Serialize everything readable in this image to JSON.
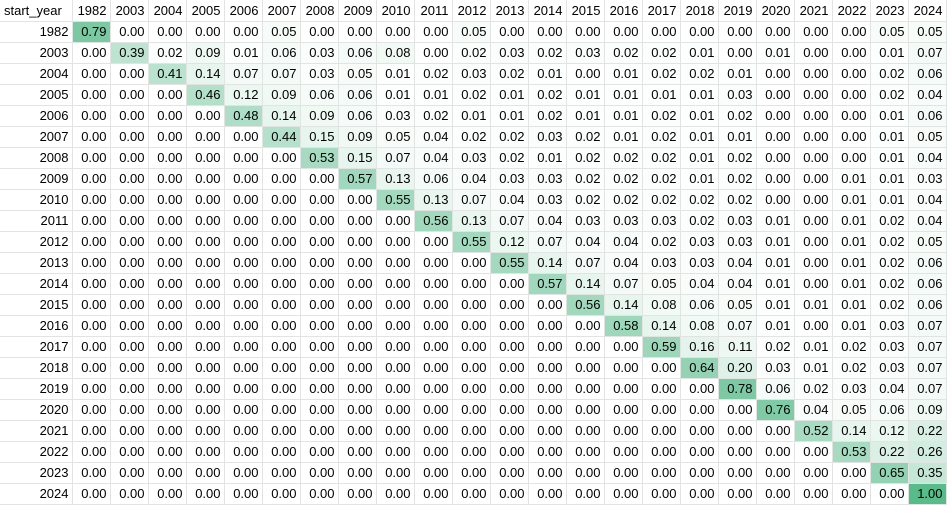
{
  "corner_label": "start_year",
  "columns": [
    "1982",
    "2003",
    "2004",
    "2005",
    "2006",
    "2007",
    "2008",
    "2009",
    "2010",
    "2011",
    "2012",
    "2013",
    "2014",
    "2015",
    "2016",
    "2017",
    "2018",
    "2019",
    "2020",
    "2021",
    "2022",
    "2023",
    "2024"
  ],
  "rows": [
    {
      "label": "1982",
      "values": [
        "0.79",
        "0.00",
        "0.00",
        "0.00",
        "0.00",
        "0.05",
        "0.00",
        "0.00",
        "0.00",
        "0.00",
        "0.05",
        "0.00",
        "0.00",
        "0.00",
        "0.00",
        "0.00",
        "0.00",
        "0.00",
        "0.00",
        "0.00",
        "0.00",
        "0.05",
        "0.05"
      ]
    },
    {
      "label": "2003",
      "values": [
        "0.00",
        "0.39",
        "0.02",
        "0.09",
        "0.01",
        "0.06",
        "0.03",
        "0.06",
        "0.08",
        "0.00",
        "0.02",
        "0.03",
        "0.02",
        "0.03",
        "0.02",
        "0.02",
        "0.01",
        "0.00",
        "0.01",
        "0.00",
        "0.00",
        "0.01",
        "0.07"
      ]
    },
    {
      "label": "2004",
      "values": [
        "0.00",
        "0.00",
        "0.41",
        "0.14",
        "0.07",
        "0.07",
        "0.03",
        "0.05",
        "0.01",
        "0.02",
        "0.03",
        "0.02",
        "0.01",
        "0.00",
        "0.01",
        "0.02",
        "0.02",
        "0.01",
        "0.00",
        "0.00",
        "0.00",
        "0.02",
        "0.06"
      ]
    },
    {
      "label": "2005",
      "values": [
        "0.00",
        "0.00",
        "0.00",
        "0.46",
        "0.12",
        "0.09",
        "0.06",
        "0.06",
        "0.01",
        "0.01",
        "0.02",
        "0.01",
        "0.02",
        "0.01",
        "0.01",
        "0.01",
        "0.01",
        "0.03",
        "0.00",
        "0.00",
        "0.00",
        "0.02",
        "0.04"
      ]
    },
    {
      "label": "2006",
      "values": [
        "0.00",
        "0.00",
        "0.00",
        "0.00",
        "0.48",
        "0.14",
        "0.09",
        "0.06",
        "0.03",
        "0.02",
        "0.01",
        "0.01",
        "0.02",
        "0.01",
        "0.01",
        "0.02",
        "0.01",
        "0.02",
        "0.00",
        "0.00",
        "0.00",
        "0.01",
        "0.06"
      ]
    },
    {
      "label": "2007",
      "values": [
        "0.00",
        "0.00",
        "0.00",
        "0.00",
        "0.00",
        "0.44",
        "0.15",
        "0.09",
        "0.05",
        "0.04",
        "0.02",
        "0.02",
        "0.03",
        "0.02",
        "0.01",
        "0.02",
        "0.01",
        "0.01",
        "0.00",
        "0.00",
        "0.00",
        "0.01",
        "0.05"
      ]
    },
    {
      "label": "2008",
      "values": [
        "0.00",
        "0.00",
        "0.00",
        "0.00",
        "0.00",
        "0.00",
        "0.53",
        "0.15",
        "0.07",
        "0.04",
        "0.03",
        "0.02",
        "0.01",
        "0.02",
        "0.02",
        "0.02",
        "0.01",
        "0.02",
        "0.00",
        "0.00",
        "0.00",
        "0.01",
        "0.04"
      ]
    },
    {
      "label": "2009",
      "values": [
        "0.00",
        "0.00",
        "0.00",
        "0.00",
        "0.00",
        "0.00",
        "0.00",
        "0.57",
        "0.13",
        "0.06",
        "0.04",
        "0.03",
        "0.03",
        "0.02",
        "0.02",
        "0.02",
        "0.01",
        "0.02",
        "0.00",
        "0.00",
        "0.01",
        "0.01",
        "0.03"
      ]
    },
    {
      "label": "2010",
      "values": [
        "0.00",
        "0.00",
        "0.00",
        "0.00",
        "0.00",
        "0.00",
        "0.00",
        "0.00",
        "0.55",
        "0.13",
        "0.07",
        "0.04",
        "0.03",
        "0.02",
        "0.02",
        "0.02",
        "0.02",
        "0.02",
        "0.00",
        "0.00",
        "0.01",
        "0.01",
        "0.04"
      ]
    },
    {
      "label": "2011",
      "values": [
        "0.00",
        "0.00",
        "0.00",
        "0.00",
        "0.00",
        "0.00",
        "0.00",
        "0.00",
        "0.00",
        "0.56",
        "0.13",
        "0.07",
        "0.04",
        "0.03",
        "0.03",
        "0.03",
        "0.02",
        "0.03",
        "0.01",
        "0.00",
        "0.01",
        "0.02",
        "0.04"
      ]
    },
    {
      "label": "2012",
      "values": [
        "0.00",
        "0.00",
        "0.00",
        "0.00",
        "0.00",
        "0.00",
        "0.00",
        "0.00",
        "0.00",
        "0.00",
        "0.55",
        "0.12",
        "0.07",
        "0.04",
        "0.04",
        "0.02",
        "0.03",
        "0.03",
        "0.01",
        "0.00",
        "0.01",
        "0.02",
        "0.05"
      ]
    },
    {
      "label": "2013",
      "values": [
        "0.00",
        "0.00",
        "0.00",
        "0.00",
        "0.00",
        "0.00",
        "0.00",
        "0.00",
        "0.00",
        "0.00",
        "0.00",
        "0.55",
        "0.14",
        "0.07",
        "0.04",
        "0.03",
        "0.03",
        "0.04",
        "0.01",
        "0.00",
        "0.01",
        "0.02",
        "0.06"
      ]
    },
    {
      "label": "2014",
      "values": [
        "0.00",
        "0.00",
        "0.00",
        "0.00",
        "0.00",
        "0.00",
        "0.00",
        "0.00",
        "0.00",
        "0.00",
        "0.00",
        "0.00",
        "0.57",
        "0.14",
        "0.07",
        "0.05",
        "0.04",
        "0.04",
        "0.01",
        "0.00",
        "0.01",
        "0.02",
        "0.06"
      ]
    },
    {
      "label": "2015",
      "values": [
        "0.00",
        "0.00",
        "0.00",
        "0.00",
        "0.00",
        "0.00",
        "0.00",
        "0.00",
        "0.00",
        "0.00",
        "0.00",
        "0.00",
        "0.00",
        "0.56",
        "0.14",
        "0.08",
        "0.06",
        "0.05",
        "0.01",
        "0.01",
        "0.01",
        "0.02",
        "0.06"
      ]
    },
    {
      "label": "2016",
      "values": [
        "0.00",
        "0.00",
        "0.00",
        "0.00",
        "0.00",
        "0.00",
        "0.00",
        "0.00",
        "0.00",
        "0.00",
        "0.00",
        "0.00",
        "0.00",
        "0.00",
        "0.58",
        "0.14",
        "0.08",
        "0.07",
        "0.01",
        "0.00",
        "0.01",
        "0.03",
        "0.07"
      ]
    },
    {
      "label": "2017",
      "values": [
        "0.00",
        "0.00",
        "0.00",
        "0.00",
        "0.00",
        "0.00",
        "0.00",
        "0.00",
        "0.00",
        "0.00",
        "0.00",
        "0.00",
        "0.00",
        "0.00",
        "0.00",
        "0.59",
        "0.16",
        "0.11",
        "0.02",
        "0.01",
        "0.02",
        "0.03",
        "0.07"
      ]
    },
    {
      "label": "2018",
      "values": [
        "0.00",
        "0.00",
        "0.00",
        "0.00",
        "0.00",
        "0.00",
        "0.00",
        "0.00",
        "0.00",
        "0.00",
        "0.00",
        "0.00",
        "0.00",
        "0.00",
        "0.00",
        "0.00",
        "0.64",
        "0.20",
        "0.03",
        "0.01",
        "0.02",
        "0.03",
        "0.07"
      ]
    },
    {
      "label": "2019",
      "values": [
        "0.00",
        "0.00",
        "0.00",
        "0.00",
        "0.00",
        "0.00",
        "0.00",
        "0.00",
        "0.00",
        "0.00",
        "0.00",
        "0.00",
        "0.00",
        "0.00",
        "0.00",
        "0.00",
        "0.00",
        "0.78",
        "0.06",
        "0.02",
        "0.03",
        "0.04",
        "0.07"
      ]
    },
    {
      "label": "2020",
      "values": [
        "0.00",
        "0.00",
        "0.00",
        "0.00",
        "0.00",
        "0.00",
        "0.00",
        "0.00",
        "0.00",
        "0.00",
        "0.00",
        "0.00",
        "0.00",
        "0.00",
        "0.00",
        "0.00",
        "0.00",
        "0.00",
        "0.76",
        "0.04",
        "0.05",
        "0.06",
        "0.09"
      ]
    },
    {
      "label": "2021",
      "values": [
        "0.00",
        "0.00",
        "0.00",
        "0.00",
        "0.00",
        "0.00",
        "0.00",
        "0.00",
        "0.00",
        "0.00",
        "0.00",
        "0.00",
        "0.00",
        "0.00",
        "0.00",
        "0.00",
        "0.00",
        "0.00",
        "0.00",
        "0.52",
        "0.14",
        "0.12",
        "0.22"
      ]
    },
    {
      "label": "2022",
      "values": [
        "0.00",
        "0.00",
        "0.00",
        "0.00",
        "0.00",
        "0.00",
        "0.00",
        "0.00",
        "0.00",
        "0.00",
        "0.00",
        "0.00",
        "0.00",
        "0.00",
        "0.00",
        "0.00",
        "0.00",
        "0.00",
        "0.00",
        "0.00",
        "0.53",
        "0.22",
        "0.26"
      ]
    },
    {
      "label": "2023",
      "values": [
        "0.00",
        "0.00",
        "0.00",
        "0.00",
        "0.00",
        "0.00",
        "0.00",
        "0.00",
        "0.00",
        "0.00",
        "0.00",
        "0.00",
        "0.00",
        "0.00",
        "0.00",
        "0.00",
        "0.00",
        "0.00",
        "0.00",
        "0.00",
        "0.00",
        "0.65",
        "0.35"
      ]
    },
    {
      "label": "2024",
      "values": [
        "0.00",
        "0.00",
        "0.00",
        "0.00",
        "0.00",
        "0.00",
        "0.00",
        "0.00",
        "0.00",
        "0.00",
        "0.00",
        "0.00",
        "0.00",
        "0.00",
        "0.00",
        "0.00",
        "0.00",
        "0.00",
        "0.00",
        "0.00",
        "0.00",
        "0.00",
        "1.00"
      ]
    }
  ],
  "colors": {
    "scale_low": "#ffffff",
    "scale_high": "#57bb8a",
    "gridline": "#e2e3e3",
    "text": "#000000"
  }
}
